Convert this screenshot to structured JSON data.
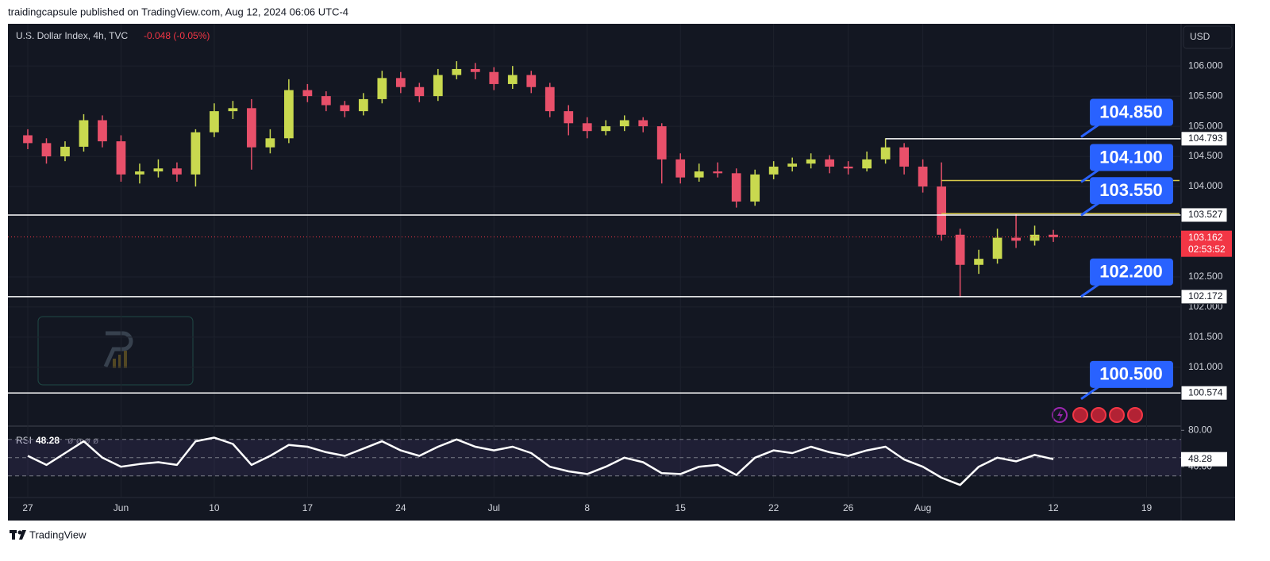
{
  "header": {
    "publisher": "traidingcapsule published on TradingView.com, Aug 12, 2024 06:06 UTC-4"
  },
  "footer": {
    "brand": "TradingView"
  },
  "chart_data": [
    {
      "type": "candlestick",
      "title": "U.S. Dollar Index, 4h, TVC",
      "change": "-0.048 (-0.05%)",
      "currency": "USD",
      "up_color": "#c9d94f",
      "down_color": "#e8506a",
      "xlim": [
        -1.064,
        61.766
      ],
      "xticks": [
        {
          "value": 0,
          "label": "27"
        },
        {
          "value": 5,
          "label": "Jun"
        },
        {
          "value": 10,
          "label": "10"
        },
        {
          "value": 15,
          "label": "17"
        },
        {
          "value": 20,
          "label": "24"
        },
        {
          "value": 25,
          "label": "Jul"
        },
        {
          "value": 30,
          "label": "8"
        },
        {
          "value": 35,
          "label": "15"
        },
        {
          "value": 40,
          "label": "22"
        },
        {
          "value": 44,
          "label": "26"
        },
        {
          "value": 48,
          "label": "Aug"
        },
        {
          "value": 55,
          "label": "12"
        },
        {
          "value": 60,
          "label": "19"
        }
      ],
      "ylim": [
        100.05,
        106.7
      ],
      "yticks": [
        {
          "value": 101,
          "label": "101.000"
        },
        {
          "value": 101.5,
          "label": "101.500"
        },
        {
          "value": 102,
          "label": "102.000"
        },
        {
          "value": 102.5,
          "label": "102.500"
        },
        {
          "value": 104,
          "label": "104.000"
        },
        {
          "value": 104.5,
          "label": "104.500"
        },
        {
          "value": 105,
          "label": "105.000"
        },
        {
          "value": 105.5,
          "label": "105.500"
        },
        {
          "value": 106,
          "label": "106.000"
        }
      ],
      "open": [
        104.85,
        104.72,
        104.5,
        104.66,
        105.1,
        104.75,
        104.2,
        104.25,
        104.3,
        104.2,
        104.9,
        105.25,
        105.3,
        104.65,
        104.8,
        105.6,
        105.5,
        105.35,
        105.25,
        105.45,
        105.8,
        105.65,
        105.5,
        105.85,
        105.95,
        105.9,
        105.7,
        105.85,
        105.65,
        105.25,
        105.05,
        104.92,
        105.0,
        105.1,
        105.0,
        104.45,
        104.15,
        104.25,
        104.22,
        103.75,
        104.2,
        104.33,
        104.38,
        104.45,
        104.33,
        104.3,
        104.45,
        104.65,
        104.33,
        104.0,
        103.2,
        102.7,
        102.8,
        103.15,
        103.1,
        103.2
      ],
      "high": [
        104.95,
        104.8,
        104.75,
        105.2,
        105.18,
        104.85,
        104.38,
        104.45,
        104.4,
        104.95,
        105.38,
        105.42,
        105.45,
        104.95,
        105.78,
        105.7,
        105.58,
        105.42,
        105.55,
        105.92,
        105.9,
        105.72,
        105.95,
        106.08,
        106.05,
        105.98,
        106.0,
        105.92,
        105.72,
        105.35,
        105.15,
        105.1,
        105.18,
        105.15,
        105.05,
        104.55,
        104.38,
        104.4,
        104.3,
        104.28,
        104.42,
        104.48,
        104.55,
        104.52,
        104.42,
        104.58,
        104.8,
        104.72,
        104.45,
        104.4,
        103.3,
        102.95,
        103.3,
        103.55,
        103.35,
        103.28
      ],
      "low": [
        104.62,
        104.38,
        104.42,
        104.58,
        104.65,
        104.08,
        104.05,
        104.15,
        104.08,
        104.0,
        104.82,
        105.12,
        104.28,
        104.55,
        104.72,
        105.4,
        105.25,
        105.15,
        105.18,
        105.38,
        105.55,
        105.4,
        105.42,
        105.78,
        105.78,
        105.6,
        105.62,
        105.55,
        105.15,
        104.85,
        104.8,
        104.85,
        104.92,
        104.9,
        104.05,
        104.05,
        104.08,
        104.15,
        103.65,
        103.68,
        104.12,
        104.25,
        104.3,
        104.22,
        104.2,
        104.25,
        104.38,
        104.2,
        103.9,
        103.1,
        102.16,
        102.55,
        102.72,
        102.98,
        103.02,
        103.08
      ],
      "close": [
        104.72,
        104.5,
        104.66,
        105.1,
        104.75,
        104.2,
        104.25,
        104.3,
        104.2,
        104.9,
        105.25,
        105.3,
        104.65,
        104.8,
        105.6,
        105.5,
        105.35,
        105.25,
        105.45,
        105.8,
        105.65,
        105.5,
        105.85,
        105.95,
        105.9,
        105.7,
        105.85,
        105.65,
        105.25,
        105.05,
        104.92,
        105.0,
        105.1,
        105.0,
        104.45,
        104.15,
        104.25,
        104.22,
        103.75,
        104.2,
        104.33,
        104.38,
        104.45,
        104.33,
        104.3,
        104.45,
        104.65,
        104.33,
        104.0,
        103.2,
        102.7,
        102.8,
        103.15,
        103.1,
        103.2,
        103.16
      ],
      "levels": [
        {
          "value": 104.793,
          "label": "104.793",
          "x_start": 46,
          "color": "#ffffff"
        },
        {
          "value": 104.1,
          "x_start": 49,
          "color": "#d8c94a"
        },
        {
          "value": 103.55,
          "x_start": 49,
          "color": "#d8c94a"
        },
        {
          "value": 103.527,
          "label": "103.527",
          "color": "#ffffff"
        },
        {
          "value": 102.172,
          "label": "102.172",
          "color": "#ffffff"
        },
        {
          "value": 100.574,
          "label": "100.574",
          "color": "#ffffff"
        }
      ],
      "callouts": [
        {
          "value": 104.85,
          "label": "104.850"
        },
        {
          "value": 104.1,
          "label": "104.100"
        },
        {
          "value": 103.55,
          "label": "103.550"
        },
        {
          "value": 102.2,
          "label": "102.200"
        },
        {
          "value": 100.5,
          "label": "100.500"
        }
      ],
      "callout_color": "#2962ff",
      "last_price": {
        "value": 103.162,
        "label": "103.162"
      },
      "countdown": "02:53:52",
      "last_color": "#f23645"
    },
    {
      "type": "line",
      "title": "RSI",
      "inputs": "ø ø ø ø",
      "color": "#ffffff",
      "xlim": [
        -1.064,
        61.766
      ],
      "ylim": [
        8,
        82
      ],
      "yticks": [
        {
          "value": 40,
          "label": "40.00"
        },
        {
          "value": 80,
          "label": "80.00"
        }
      ],
      "band": [
        30,
        70
      ],
      "levels": [
        30,
        50,
        70
      ],
      "values": [
        52,
        42,
        55,
        68,
        50,
        40,
        43,
        45,
        42,
        68,
        72,
        65,
        42,
        52,
        64,
        62,
        56,
        52,
        60,
        68,
        58,
        52,
        62,
        70,
        62,
        58,
        62,
        55,
        40,
        35,
        32,
        40,
        50,
        45,
        33,
        32,
        40,
        42,
        31,
        50,
        58,
        55,
        62,
        56,
        52,
        58,
        62,
        48,
        40,
        28,
        20,
        40,
        50,
        46,
        53,
        48.28
      ]
    }
  ]
}
